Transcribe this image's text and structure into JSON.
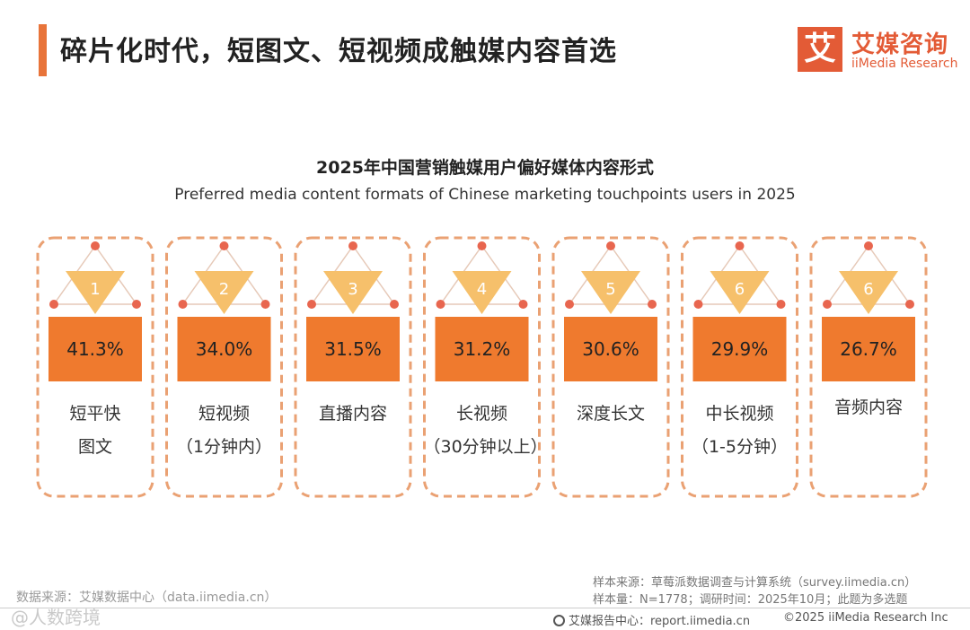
{
  "page": {
    "title": "碎片化时代，短图文、短视频成触媒内容首选",
    "logo_mark": "艾",
    "logo_cn": "艾媒咨询",
    "logo_en": "iiMedia Research"
  },
  "chart_data": {
    "type": "bar",
    "title": "2025年中国营销触媒用户偏好媒体内容形式",
    "subtitle": "Preferred media content formats of Chinese marketing touchpoints users in 2025",
    "unit": "%",
    "items": [
      {
        "rank": "1",
        "value": 41.3,
        "label": "41.3%",
        "category_lines": [
          "短平快",
          "图文"
        ]
      },
      {
        "rank": "2",
        "value": 34.0,
        "label": "34.0%",
        "category_lines": [
          "短视频",
          "（1分钟内）"
        ]
      },
      {
        "rank": "3",
        "value": 31.5,
        "label": "31.5%",
        "category_lines": [
          "直播内容"
        ]
      },
      {
        "rank": "4",
        "value": 31.2,
        "label": "31.2%",
        "category_lines": [
          "长视频",
          "（30分钟以上）"
        ]
      },
      {
        "rank": "5",
        "value": 30.6,
        "label": "30.6%",
        "category_lines": [
          "深度长文"
        ]
      },
      {
        "rank": "6",
        "value": 29.9,
        "label": "29.9%",
        "category_lines": [
          "中长视频",
          "（1-5分钟）"
        ]
      },
      {
        "rank": "6",
        "value": 26.7,
        "label": "26.7%",
        "category_lines": [
          "音频内容"
        ]
      }
    ]
  },
  "footer": {
    "data_source": "数据来源：艾媒数据中心（data.iimedia.cn）",
    "sample_source": "样本来源：草莓派数据调查与计算系统（survey.iimedia.cn）",
    "sample_info": "样本量：N=1778；调研时间：2025年10月；此题为多选题",
    "report_center": "艾媒报告中心：report.iimedia.cn",
    "copyright": "©2025  iiMedia Research  Inc",
    "watermark": "@人数跨境"
  },
  "colors": {
    "accent": "#E8743A",
    "box": "#EF7A2E",
    "triangle": "#F6C06B",
    "dot": "#E8664F",
    "dash": "#EAA173",
    "logo": "#E35B36"
  }
}
